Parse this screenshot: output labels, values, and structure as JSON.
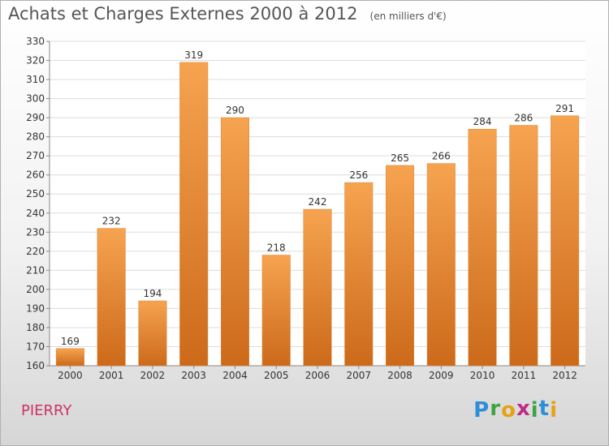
{
  "chart_data": {
    "type": "bar",
    "title": "Achats et Charges Externes 2000 à 2012",
    "unit_label": "(en milliers d'€)",
    "categories": [
      "2000",
      "2001",
      "2002",
      "2003",
      "2004",
      "2005",
      "2006",
      "2007",
      "2008",
      "2009",
      "2010",
      "2011",
      "2012"
    ],
    "values": [
      169,
      232,
      194,
      319,
      290,
      218,
      242,
      256,
      265,
      266,
      284,
      286,
      291
    ],
    "ylim": [
      160,
      330
    ],
    "yticks": [
      160,
      170,
      180,
      190,
      200,
      210,
      220,
      230,
      240,
      250,
      260,
      270,
      280,
      290,
      300,
      310,
      320,
      330
    ],
    "grid": true,
    "bar_color_top": "#f6a350",
    "bar_color_bottom": "#cc6a1a"
  },
  "footer": {
    "commune": "PIERRY",
    "logo_letters": [
      "P",
      "r",
      "o",
      "x",
      "i",
      "t",
      "i"
    ],
    "logo_colors": [
      "#2e8fd8",
      "#3da343",
      "#e6a20f",
      "#c02b88",
      "#3da343",
      "#2e8fd8",
      "#e6a20f"
    ]
  }
}
